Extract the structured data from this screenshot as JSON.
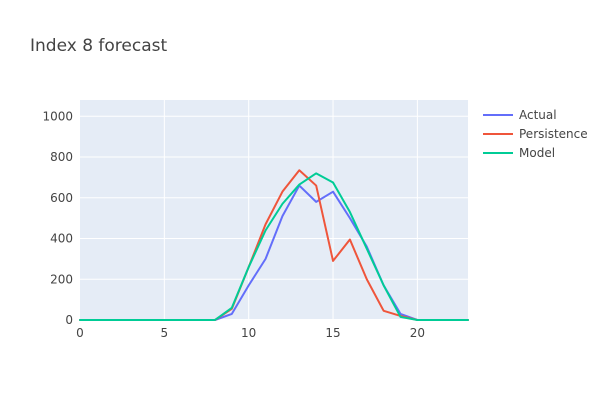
{
  "chart_data": {
    "type": "line",
    "title": "Index 8 forecast",
    "xlabel": "",
    "ylabel": "",
    "xlim": [
      0,
      23
    ],
    "ylim": [
      0,
      1080
    ],
    "x_ticks": [
      0,
      5,
      10,
      15,
      20
    ],
    "y_ticks": [
      0,
      200,
      400,
      600,
      800,
      1000
    ],
    "grid": true,
    "legend_position": "top-right",
    "plot_background": "#e5ecf6",
    "x": [
      0,
      1,
      2,
      3,
      4,
      5,
      6,
      7,
      8,
      9,
      10,
      11,
      12,
      13,
      14,
      15,
      16,
      17,
      18,
      19,
      20,
      21,
      22,
      23
    ],
    "series": [
      {
        "name": "Actual",
        "color": "#636efa",
        "values": [
          0,
          0,
          0,
          0,
          0,
          0,
          0,
          0,
          0,
          30,
          170,
          300,
          510,
          660,
          580,
          630,
          500,
          360,
          170,
          30,
          0,
          0,
          0,
          0
        ]
      },
      {
        "name": "Persistence",
        "color": "#ef553b",
        "values": [
          0,
          0,
          0,
          0,
          0,
          0,
          0,
          0,
          0,
          55,
          260,
          470,
          630,
          735,
          660,
          290,
          395,
          200,
          45,
          20,
          0,
          0,
          0,
          0
        ]
      },
      {
        "name": "Model",
        "color": "#00cc96",
        "values": [
          0,
          0,
          0,
          0,
          0,
          0,
          0,
          0,
          0,
          60,
          260,
          440,
          570,
          665,
          720,
          675,
          530,
          350,
          170,
          15,
          0,
          0,
          0,
          0
        ]
      }
    ]
  }
}
